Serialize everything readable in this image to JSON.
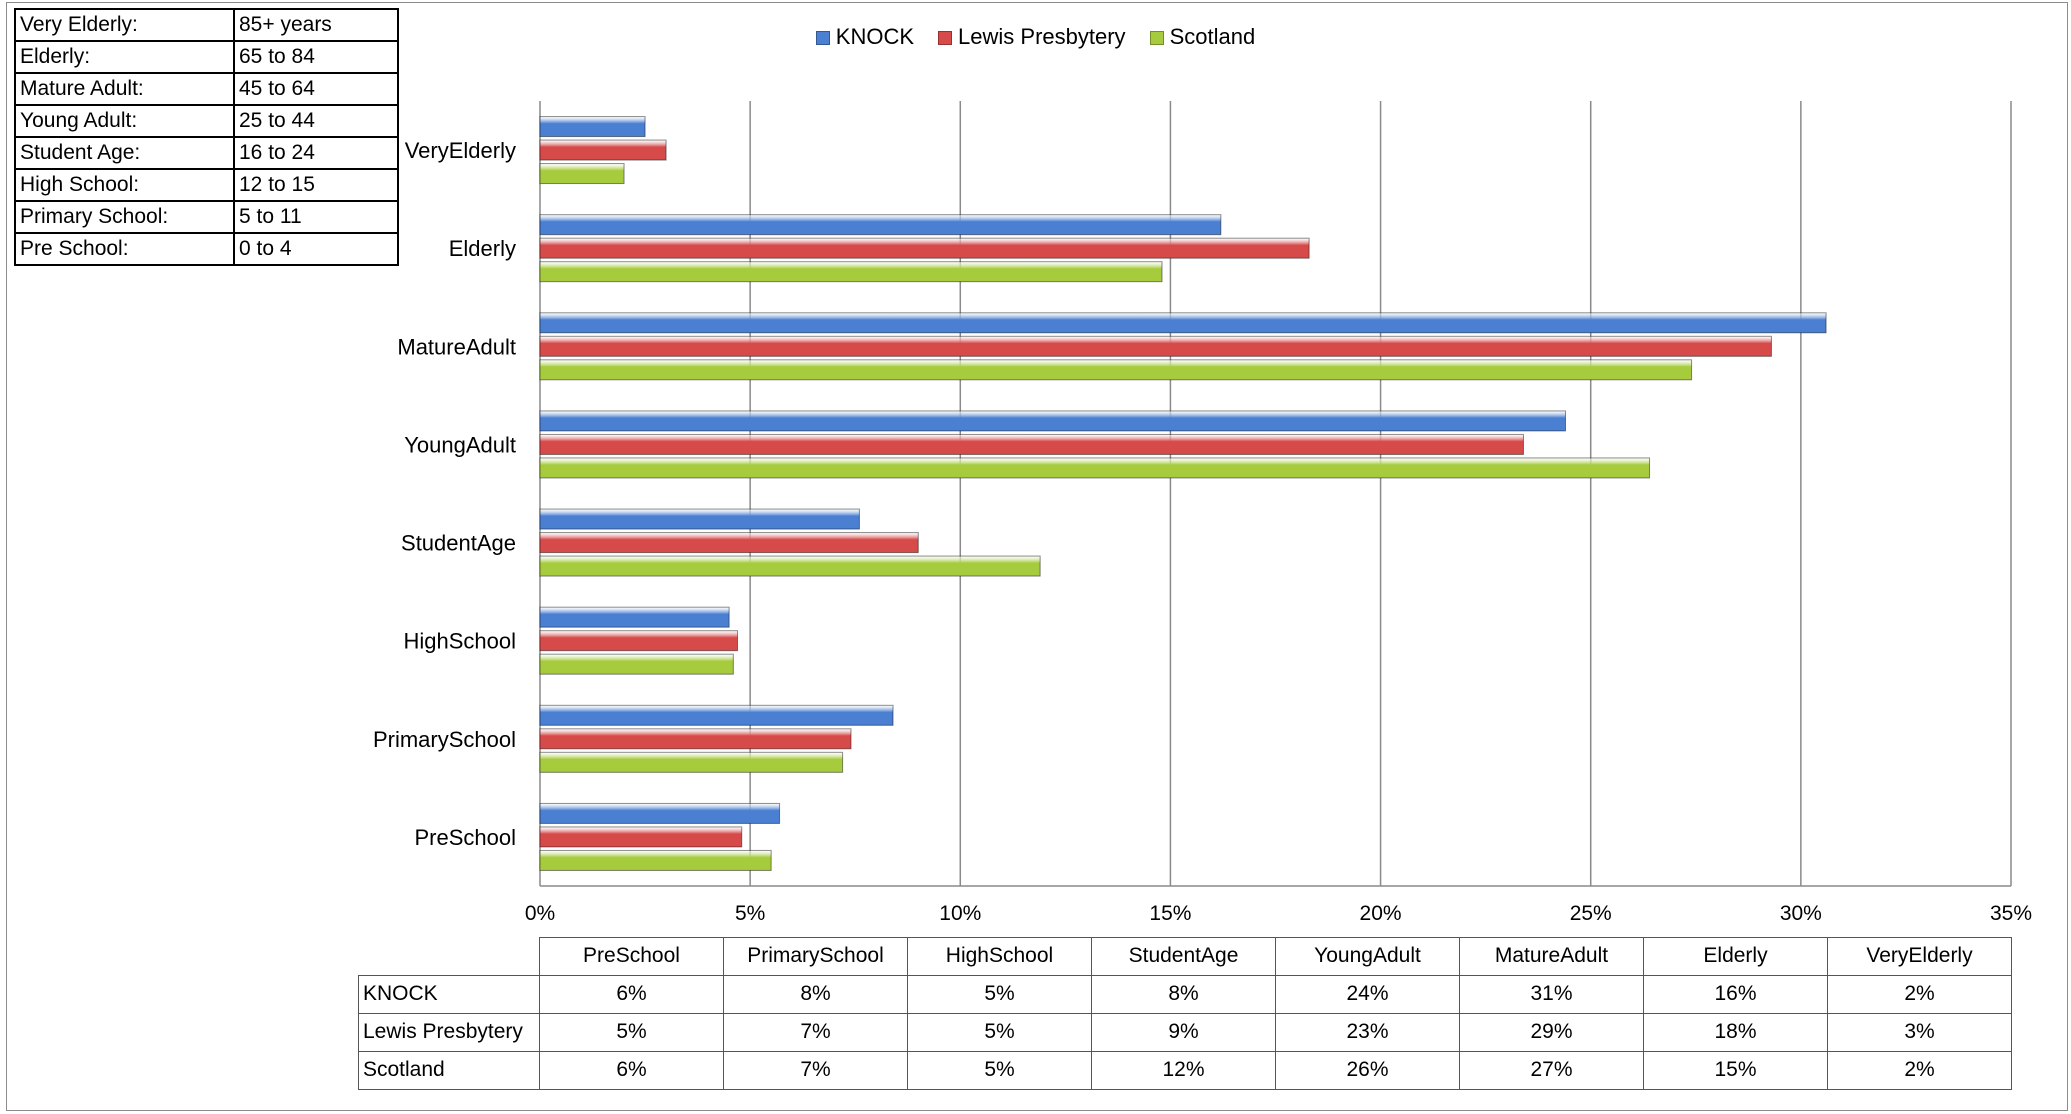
{
  "age_groups": [
    {
      "label": "Very Elderly:",
      "range": "85+ years"
    },
    {
      "label": "Elderly:",
      "range": "65 to 84"
    },
    {
      "label": "Mature Adult:",
      "range": "45 to 64"
    },
    {
      "label": "Young Adult:",
      "range": "25 to 44"
    },
    {
      "label": "Student Age:",
      "range": "16 to 24"
    },
    {
      "label": "High School:",
      "range": "12 to 15"
    },
    {
      "label": "Primary School:",
      "range": "5 to 11"
    },
    {
      "label": "Pre School:",
      "range": "0 to 4"
    }
  ],
  "chart_data": {
    "type": "bar",
    "orientation": "horizontal",
    "categories": [
      "PreSchool",
      "PrimarySchool",
      "HighSchool",
      "StudentAge",
      "YoungAdult",
      "MatureAdult",
      "Elderly",
      "VeryElderly"
    ],
    "series": [
      {
        "name": "KNOCK",
        "color": "#4a7fd1",
        "values": [
          5.7,
          8.4,
          4.5,
          7.6,
          24.4,
          30.6,
          16.2,
          2.5
        ]
      },
      {
        "name": "Lewis Presbytery",
        "color": "#d64a4a",
        "values": [
          4.8,
          7.4,
          4.7,
          9.0,
          23.4,
          29.3,
          18.3,
          3.0
        ]
      },
      {
        "name": "Scotland",
        "color": "#a6cc3e",
        "values": [
          5.5,
          7.2,
          4.6,
          11.9,
          26.4,
          27.4,
          14.8,
          2.0
        ]
      }
    ],
    "xlim": [
      0,
      35
    ],
    "xticks": [
      "0%",
      "5%",
      "10%",
      "15%",
      "20%",
      "25%",
      "30%",
      "35%"
    ],
    "grid": true,
    "legend_position": "top",
    "data_table": {
      "rows": [
        {
          "name": "KNOCK",
          "values": [
            "6%",
            "8%",
            "5%",
            "8%",
            "24%",
            "31%",
            "16%",
            "2%"
          ]
        },
        {
          "name": "Lewis Presbytery",
          "values": [
            "5%",
            "7%",
            "5%",
            "9%",
            "23%",
            "29%",
            "18%",
            "3%"
          ]
        },
        {
          "name": "Scotland",
          "values": [
            "6%",
            "7%",
            "5%",
            "12%",
            "26%",
            "27%",
            "15%",
            "2%"
          ]
        }
      ]
    }
  }
}
